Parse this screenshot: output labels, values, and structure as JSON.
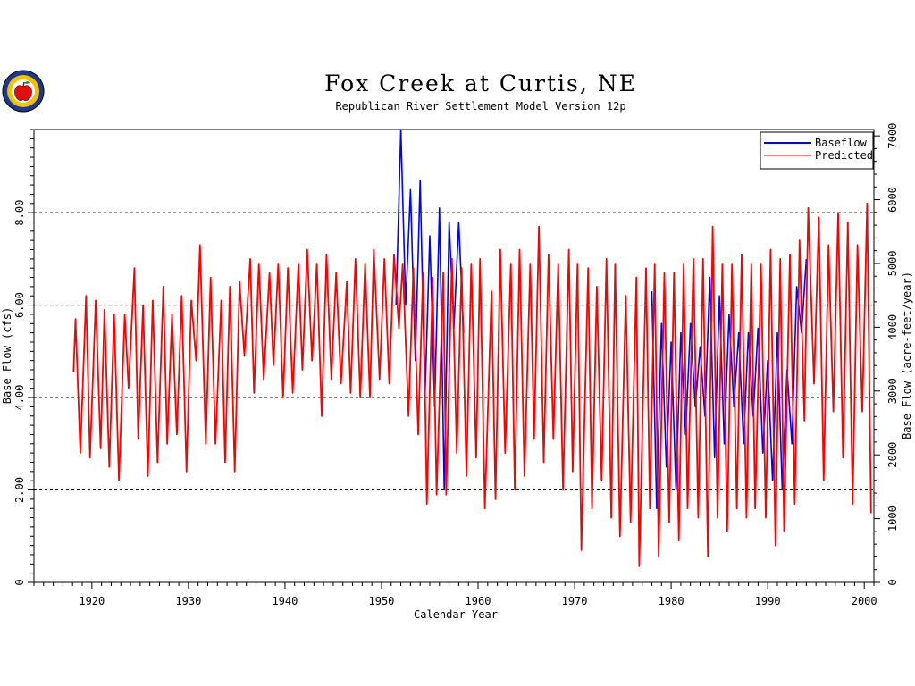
{
  "chart_data": {
    "type": "line",
    "title": "Fox Creek at Curtis, NE",
    "subtitle": "Republican River Settlement Model Version 12p",
    "xlabel": "Calendar Year",
    "ylabel_left": "Base Flow (cfs)",
    "ylabel_right": "Base Flow (acre-feet/year)",
    "xlim": [
      1914,
      2001
    ],
    "ylim": [
      0,
      9.8
    ],
    "ylim_right": [
      0,
      7100
    ],
    "x_ticks": [
      1920,
      1930,
      1940,
      1950,
      1960,
      1970,
      1980,
      1990,
      2000
    ],
    "y_ticks_left": [
      "0",
      "2.00",
      "4.00",
      "6.00",
      "8.00"
    ],
    "y_ticks_left_values": [
      0,
      2,
      4,
      6,
      8
    ],
    "y_ticks_right": [
      0,
      1000,
      2000,
      3000,
      4000,
      5000,
      6000,
      7000
    ],
    "gridlines_y": [
      2,
      4,
      6,
      8
    ],
    "legend": {
      "position": "top-right",
      "entries": [
        "Baseflow",
        "Predicted"
      ]
    },
    "series": [
      {
        "name": "Baseflow",
        "color": "#0000ff",
        "annual_peaks": [
          [
            1952,
            9.8
          ],
          [
            1953,
            8.5
          ],
          [
            1954,
            8.7
          ],
          [
            1955,
            7.5
          ],
          [
            1956,
            8.1
          ],
          [
            1957,
            7.8
          ],
          [
            1958,
            7.8
          ],
          [
            1978,
            6.3
          ],
          [
            1979,
            5.6
          ],
          [
            1980,
            5.2
          ],
          [
            1981,
            5.4
          ],
          [
            1982,
            5.6
          ],
          [
            1983,
            5.1
          ],
          [
            1984,
            6.6
          ],
          [
            1985,
            6.2
          ],
          [
            1986,
            5.8
          ],
          [
            1987,
            5.4
          ],
          [
            1988,
            5.4
          ],
          [
            1989,
            5.5
          ],
          [
            1990,
            4.8
          ],
          [
            1991,
            5.4
          ],
          [
            1992,
            4.6
          ],
          [
            1993,
            6.4
          ],
          [
            1994,
            7.0
          ]
        ],
        "annual_troughs": [
          [
            1951.5,
            6.0
          ],
          [
            1952.5,
            6.0
          ],
          [
            1953.5,
            4.8
          ],
          [
            1954.5,
            4.0
          ],
          [
            1955.5,
            3.8
          ],
          [
            1956.5,
            2.0
          ],
          [
            1957.5,
            5.5
          ],
          [
            1958.5,
            5.4
          ],
          [
            1978.5,
            1.6
          ],
          [
            1979.5,
            2.5
          ],
          [
            1980.5,
            2.0
          ],
          [
            1981.5,
            3.2
          ],
          [
            1982.5,
            3.8
          ],
          [
            1983.5,
            3.6
          ],
          [
            1984.5,
            2.7
          ],
          [
            1985.5,
            3.0
          ],
          [
            1986.5,
            3.8
          ],
          [
            1987.5,
            3.0
          ],
          [
            1988.5,
            3.6
          ],
          [
            1989.5,
            2.8
          ],
          [
            1990.5,
            2.2
          ],
          [
            1991.5,
            2.0
          ],
          [
            1992.5,
            3.0
          ],
          [
            1993.5,
            5.4
          ]
        ]
      },
      {
        "name": "Predicted",
        "color": "#ff0000",
        "flat_start": [
          [
            1914,
            4.55
          ],
          [
            1918.1,
            4.55
          ]
        ],
        "annual_peaks": [
          [
            1918.3,
            5.7
          ],
          [
            1919.4,
            6.2
          ],
          [
            1920.4,
            6.1
          ],
          [
            1921.3,
            5.9
          ],
          [
            1922.3,
            5.8
          ],
          [
            1923.4,
            5.8
          ],
          [
            1924.4,
            6.8
          ],
          [
            1925.3,
            6.0
          ],
          [
            1926.3,
            6.1
          ],
          [
            1927.4,
            6.4
          ],
          [
            1928.3,
            5.8
          ],
          [
            1929.3,
            6.2
          ],
          [
            1930.3,
            6.1
          ],
          [
            1931.2,
            7.3
          ],
          [
            1932.3,
            6.6
          ],
          [
            1933.4,
            6.1
          ],
          [
            1934.3,
            6.4
          ],
          [
            1935.3,
            6.5
          ],
          [
            1936.4,
            7.0
          ],
          [
            1937.3,
            6.9
          ],
          [
            1938.4,
            6.7
          ],
          [
            1939.3,
            6.9
          ],
          [
            1940.3,
            6.8
          ],
          [
            1941.4,
            6.9
          ],
          [
            1942.3,
            7.2
          ],
          [
            1943.3,
            6.9
          ],
          [
            1944.3,
            7.1
          ],
          [
            1945.3,
            6.7
          ],
          [
            1946.4,
            6.5
          ],
          [
            1947.3,
            7.0
          ],
          [
            1948.3,
            6.9
          ],
          [
            1949.2,
            7.2
          ],
          [
            1950.3,
            7.0
          ],
          [
            1951.3,
            7.1
          ],
          [
            1952.2,
            6.9
          ],
          [
            1953.3,
            6.8
          ],
          [
            1954.3,
            6.7
          ],
          [
            1955.3,
            6.6
          ],
          [
            1956.4,
            6.7
          ],
          [
            1957.3,
            7.0
          ],
          [
            1958.3,
            6.8
          ],
          [
            1959.3,
            6.9
          ],
          [
            1960.2,
            7.0
          ],
          [
            1961.4,
            6.3
          ],
          [
            1962.3,
            7.2
          ],
          [
            1963.4,
            6.9
          ],
          [
            1964.3,
            7.2
          ],
          [
            1965.4,
            6.9
          ],
          [
            1966.3,
            7.7
          ],
          [
            1967.3,
            7.1
          ],
          [
            1968.3,
            6.9
          ],
          [
            1969.4,
            7.2
          ],
          [
            1970.3,
            6.9
          ],
          [
            1971.4,
            6.8
          ],
          [
            1972.3,
            6.4
          ],
          [
            1973.3,
            7.0
          ],
          [
            1974.2,
            6.9
          ],
          [
            1975.3,
            6.2
          ],
          [
            1976.4,
            6.6
          ],
          [
            1977.4,
            6.8
          ],
          [
            1978.3,
            6.9
          ],
          [
            1979.3,
            6.7
          ],
          [
            1980.3,
            6.7
          ],
          [
            1981.3,
            6.9
          ],
          [
            1982.3,
            7.0
          ],
          [
            1983.3,
            7.0
          ],
          [
            1984.3,
            7.7
          ],
          [
            1985.3,
            6.9
          ],
          [
            1986.3,
            6.9
          ],
          [
            1987.3,
            7.1
          ],
          [
            1988.3,
            6.9
          ],
          [
            1989.3,
            6.9
          ],
          [
            1990.3,
            7.2
          ],
          [
            1991.3,
            7.0
          ],
          [
            1992.3,
            7.1
          ],
          [
            1993.3,
            7.4
          ],
          [
            1994.2,
            8.1
          ],
          [
            1995.3,
            7.9
          ],
          [
            1996.3,
            7.3
          ],
          [
            1997.3,
            8.0
          ],
          [
            1998.3,
            7.8
          ],
          [
            1999.3,
            7.3
          ],
          [
            2000.3,
            8.2
          ]
        ],
        "annual_troughs": [
          [
            1918.8,
            2.8
          ],
          [
            1919.8,
            2.7
          ],
          [
            1920.9,
            2.9
          ],
          [
            1921.8,
            2.5
          ],
          [
            1922.8,
            2.2
          ],
          [
            1923.8,
            4.2
          ],
          [
            1924.8,
            3.1
          ],
          [
            1925.8,
            2.3
          ],
          [
            1926.8,
            2.6
          ],
          [
            1927.8,
            3.0
          ],
          [
            1928.8,
            3.2
          ],
          [
            1929.8,
            2.4
          ],
          [
            1930.8,
            4.8
          ],
          [
            1931.8,
            3.0
          ],
          [
            1932.8,
            3.0
          ],
          [
            1933.8,
            2.6
          ],
          [
            1934.8,
            2.4
          ],
          [
            1935.8,
            4.9
          ],
          [
            1936.8,
            4.1
          ],
          [
            1937.8,
            4.4
          ],
          [
            1938.8,
            4.7
          ],
          [
            1939.8,
            4.0
          ],
          [
            1940.8,
            4.1
          ],
          [
            1941.8,
            4.6
          ],
          [
            1942.8,
            4.8
          ],
          [
            1943.8,
            3.6
          ],
          [
            1944.8,
            4.4
          ],
          [
            1945.8,
            4.3
          ],
          [
            1946.8,
            4.1
          ],
          [
            1947.8,
            4.0
          ],
          [
            1948.8,
            4.0
          ],
          [
            1949.8,
            4.4
          ],
          [
            1950.8,
            4.3
          ],
          [
            1951.8,
            5.5
          ],
          [
            1952.8,
            3.6
          ],
          [
            1953.8,
            3.2
          ],
          [
            1954.7,
            1.7
          ],
          [
            1955.7,
            1.9
          ],
          [
            1956.7,
            1.9
          ],
          [
            1957.8,
            2.8
          ],
          [
            1958.8,
            2.3
          ],
          [
            1959.8,
            2.7
          ],
          [
            1960.7,
            1.6
          ],
          [
            1961.8,
            1.8
          ],
          [
            1962.8,
            2.8
          ],
          [
            1963.8,
            2.0
          ],
          [
            1964.8,
            2.3
          ],
          [
            1965.8,
            3.1
          ],
          [
            1966.8,
            2.6
          ],
          [
            1967.8,
            3.1
          ],
          [
            1968.8,
            2.0
          ],
          [
            1969.8,
            2.4
          ],
          [
            1970.7,
            0.7
          ],
          [
            1971.8,
            1.6
          ],
          [
            1972.8,
            2.2
          ],
          [
            1973.8,
            1.4
          ],
          [
            1974.7,
            1.0
          ],
          [
            1975.8,
            1.3
          ],
          [
            1976.7,
            0.35
          ],
          [
            1977.8,
            1.6
          ],
          [
            1978.7,
            0.55
          ],
          [
            1979.8,
            1.3
          ],
          [
            1980.8,
            0.9
          ],
          [
            1981.7,
            1.6
          ],
          [
            1982.8,
            1.4
          ],
          [
            1983.8,
            0.55
          ],
          [
            1984.8,
            1.4
          ],
          [
            1985.8,
            1.1
          ],
          [
            1986.8,
            1.6
          ],
          [
            1987.8,
            1.4
          ],
          [
            1988.7,
            1.6
          ],
          [
            1989.8,
            1.4
          ],
          [
            1990.8,
            0.8
          ],
          [
            1991.7,
            1.1
          ],
          [
            1992.8,
            1.7
          ],
          [
            1993.8,
            3.5
          ],
          [
            1994.8,
            4.3
          ],
          [
            1995.8,
            2.2
          ],
          [
            1996.8,
            3.7
          ],
          [
            1997.8,
            2.7
          ],
          [
            1998.8,
            1.7
          ],
          [
            1999.8,
            3.7
          ],
          [
            2000.7,
            1.5
          ]
        ]
      }
    ]
  }
}
